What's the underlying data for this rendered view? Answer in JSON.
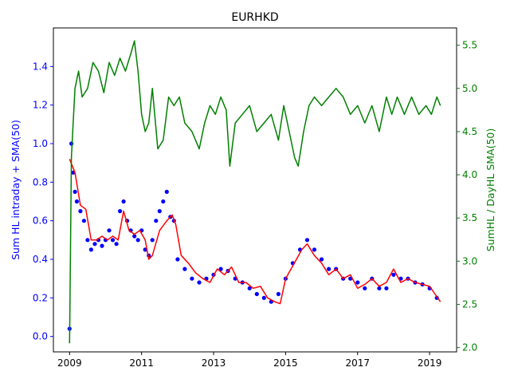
{
  "chart_data": {
    "type": "scatter",
    "title": "EURHKD",
    "xlabel": "",
    "ylabel": "Sum HL intraday + SMA(50)",
    "y2label": "SumHL / DayHL SMA(50)",
    "x_ticks": [
      "2009",
      "2011",
      "2013",
      "2015",
      "2017",
      "2019"
    ],
    "xlim": [
      2008.55,
      2019.75
    ],
    "ylim": [
      -0.08,
      1.6
    ],
    "y_ticks": [
      "0.0",
      "0.2",
      "0.4",
      "0.6",
      "0.8",
      "1.0",
      "1.2",
      "1.4"
    ],
    "y2lim": [
      1.95,
      5.7
    ],
    "y2_ticks": [
      "2.0",
      "2.5",
      "3.0",
      "3.5",
      "4.0",
      "4.5",
      "5.0",
      "5.5"
    ],
    "grid": false,
    "colors": {
      "scatter": "#0000ff",
      "sma": "#ff0000",
      "ratio": "#008000",
      "left_axis": "#0000ff",
      "right_axis": "#008000"
    },
    "series": [
      {
        "axis": "left",
        "style": "scatter",
        "color": "#0000ff",
        "x": [
          2009.0,
          2009.05,
          2009.1,
          2009.15,
          2009.2,
          2009.3,
          2009.4,
          2009.5,
          2009.6,
          2009.7,
          2009.8,
          2009.9,
          2010.0,
          2010.1,
          2010.2,
          2010.3,
          2010.4,
          2010.5,
          2010.6,
          2010.7,
          2010.8,
          2010.9,
          2011.0,
          2011.1,
          2011.2,
          2011.3,
          2011.4,
          2011.5,
          2011.6,
          2011.7,
          2011.8,
          2011.9,
          2012.0,
          2012.2,
          2012.4,
          2012.6,
          2012.8,
          2013.0,
          2013.2,
          2013.4,
          2013.6,
          2013.8,
          2014.0,
          2014.2,
          2014.4,
          2014.6,
          2014.8,
          2015.0,
          2015.2,
          2015.4,
          2015.6,
          2015.8,
          2016.0,
          2016.2,
          2016.4,
          2016.6,
          2016.8,
          2017.0,
          2017.2,
          2017.4,
          2017.6,
          2017.8,
          2018.0,
          2018.2,
          2018.4,
          2018.6,
          2018.8,
          2019.0,
          2019.2
        ],
        "y": [
          0.04,
          1.0,
          0.85,
          0.75,
          0.7,
          0.65,
          0.6,
          0.5,
          0.45,
          0.48,
          0.5,
          0.47,
          0.5,
          0.55,
          0.5,
          0.48,
          0.65,
          0.7,
          0.6,
          0.55,
          0.52,
          0.5,
          0.55,
          0.45,
          0.42,
          0.5,
          0.6,
          0.65,
          0.7,
          0.75,
          0.62,
          0.6,
          0.4,
          0.35,
          0.3,
          0.28,
          0.3,
          0.32,
          0.35,
          0.34,
          0.3,
          0.28,
          0.25,
          0.22,
          0.2,
          0.18,
          0.22,
          0.3,
          0.38,
          0.45,
          0.5,
          0.45,
          0.4,
          0.35,
          0.35,
          0.3,
          0.3,
          0.28,
          0.25,
          0.3,
          0.25,
          0.25,
          0.32,
          0.3,
          0.3,
          0.28,
          0.27,
          0.25,
          0.2
        ]
      },
      {
        "axis": "left",
        "style": "line",
        "color": "#ff0000",
        "x": [
          2009.0,
          2009.15,
          2009.3,
          2009.45,
          2009.6,
          2009.75,
          2009.9,
          2010.05,
          2010.2,
          2010.35,
          2010.5,
          2010.65,
          2010.8,
          2010.95,
          2011.1,
          2011.2,
          2011.3,
          2011.5,
          2011.7,
          2011.85,
          2011.95,
          2012.1,
          2012.3,
          2012.5,
          2012.7,
          2012.9,
          2013.1,
          2013.3,
          2013.5,
          2013.7,
          2013.9,
          2014.1,
          2014.3,
          2014.5,
          2014.7,
          2014.85,
          2015.0,
          2015.15,
          2015.3,
          2015.45,
          2015.6,
          2015.8,
          2016.0,
          2016.2,
          2016.4,
          2016.6,
          2016.8,
          2017.0,
          2017.2,
          2017.4,
          2017.6,
          2017.8,
          2018.0,
          2018.2,
          2018.4,
          2018.6,
          2018.8,
          2019.0,
          2019.15,
          2019.3
        ],
        "y": [
          0.92,
          0.85,
          0.68,
          0.66,
          0.5,
          0.5,
          0.52,
          0.5,
          0.52,
          0.5,
          0.65,
          0.55,
          0.53,
          0.55,
          0.5,
          0.4,
          0.42,
          0.55,
          0.6,
          0.63,
          0.58,
          0.42,
          0.38,
          0.33,
          0.3,
          0.28,
          0.35,
          0.32,
          0.36,
          0.28,
          0.28,
          0.25,
          0.26,
          0.2,
          0.18,
          0.17,
          0.3,
          0.35,
          0.4,
          0.45,
          0.48,
          0.42,
          0.38,
          0.32,
          0.35,
          0.3,
          0.32,
          0.25,
          0.27,
          0.3,
          0.26,
          0.28,
          0.35,
          0.28,
          0.3,
          0.28,
          0.27,
          0.26,
          0.22,
          0.18
        ]
      },
      {
        "axis": "right",
        "style": "line",
        "color": "#008000",
        "x": [
          2009.0,
          2009.05,
          2009.1,
          2009.15,
          2009.25,
          2009.35,
          2009.5,
          2009.65,
          2009.8,
          2009.95,
          2010.1,
          2010.25,
          2010.4,
          2010.55,
          2010.7,
          2010.8,
          2010.9,
          2011.0,
          2011.1,
          2011.2,
          2011.3,
          2011.45,
          2011.6,
          2011.75,
          2011.9,
          2012.05,
          2012.2,
          2012.4,
          2012.6,
          2012.75,
          2012.9,
          2013.05,
          2013.2,
          2013.35,
          2013.45,
          2013.6,
          2013.8,
          2014.0,
          2014.2,
          2014.4,
          2014.6,
          2014.8,
          2014.95,
          2015.1,
          2015.25,
          2015.35,
          2015.5,
          2015.65,
          2015.8,
          2016.0,
          2016.2,
          2016.4,
          2016.6,
          2016.8,
          2017.0,
          2017.2,
          2017.4,
          2017.6,
          2017.8,
          2017.95,
          2018.1,
          2018.3,
          2018.5,
          2018.7,
          2018.9,
          2019.05,
          2019.2,
          2019.3
        ],
        "y": [
          2.05,
          4.2,
          4.6,
          5.0,
          5.2,
          4.9,
          5.0,
          5.3,
          5.2,
          4.95,
          5.3,
          5.15,
          5.35,
          5.2,
          5.4,
          5.55,
          5.2,
          4.7,
          4.5,
          4.6,
          5.0,
          4.3,
          4.4,
          4.9,
          4.8,
          4.9,
          4.6,
          4.5,
          4.3,
          4.6,
          4.8,
          4.7,
          4.9,
          4.75,
          4.1,
          4.6,
          4.7,
          4.8,
          4.5,
          4.6,
          4.7,
          4.4,
          4.8,
          4.5,
          4.2,
          4.1,
          4.5,
          4.8,
          4.9,
          4.8,
          4.9,
          5.0,
          4.9,
          4.7,
          4.8,
          4.6,
          4.8,
          4.5,
          4.9,
          4.7,
          4.9,
          4.7,
          4.9,
          4.7,
          4.8,
          4.7,
          4.9,
          4.8
        ]
      }
    ]
  }
}
